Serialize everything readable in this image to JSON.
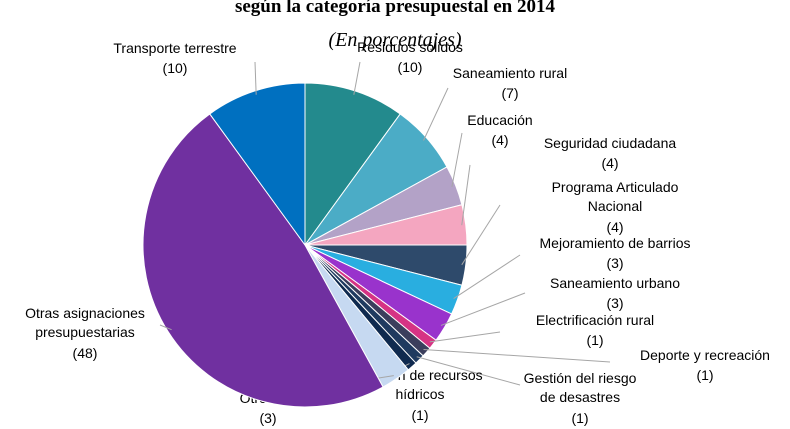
{
  "chart_data": {
    "type": "pie",
    "title": "según la categoría presupuestal en 2014",
    "subtitle": "(En porcentajes)",
    "categories": [
      "Residuos sólidos",
      "Saneamiento rural",
      "Educación",
      "Seguridad ciudadana",
      "Programa Articulado\nNacional",
      "Mejoramiento de barrios",
      "Saneamiento urbano",
      "Electrificación rural",
      "Deporte y recreación",
      "Gestión del riesgo\nde desastres",
      "Gestión de recursos\nhídricos",
      "Otros PP",
      "Otras asignaciones\npresupuestarias",
      "Transporte terrestre"
    ],
    "values": [
      10,
      7,
      4,
      4,
      4,
      3,
      3,
      1,
      1,
      1,
      1,
      3,
      48,
      10
    ],
    "value_labels": [
      "(10)",
      "(7)",
      "(4)",
      "(4)",
      "(4)",
      "(3)",
      "(3)",
      "(1)",
      "(1)",
      "(1)",
      "(1)",
      "(3)",
      "(48)",
      "(10)"
    ],
    "colors": [
      "#238a8d",
      "#4bacc6",
      "#b3a2c7",
      "#f4a6c0",
      "#2e4a6b",
      "#29aee0",
      "#9933cc",
      "#d63384",
      "#3b3e5c",
      "#1f3a5f",
      "#0f2a4f",
      "#c6d9f1",
      "#7030a0",
      "#0070c0"
    ]
  }
}
